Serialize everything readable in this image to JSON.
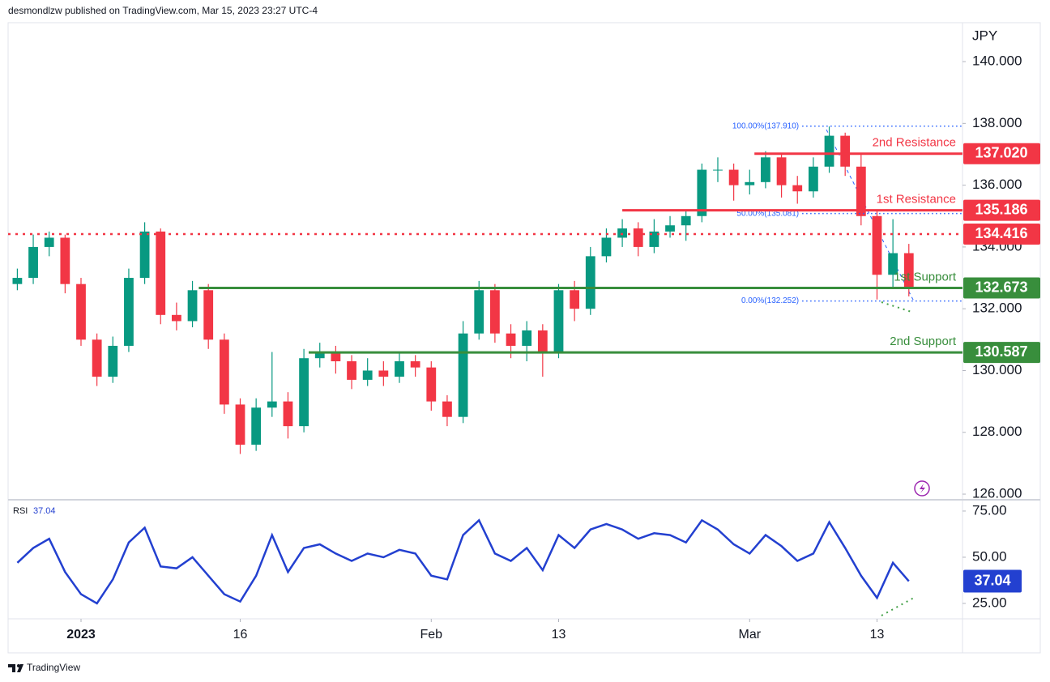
{
  "header": {
    "text": "desmondlzw published on TradingView.com, Mar 15, 2023 23:27 UTC-4"
  },
  "footer": {
    "brand": "TradingView"
  },
  "chart_data": [
    {
      "type": "candlestick",
      "unit": "JPY",
      "x": [
        -4,
        -3,
        -2,
        -1,
        0,
        1,
        2,
        3,
        4,
        5,
        6,
        7,
        8,
        9,
        10,
        11,
        12,
        13,
        14,
        15,
        16,
        17,
        18,
        19,
        20,
        21,
        22,
        23,
        24,
        25,
        26,
        27,
        28,
        29,
        30,
        31,
        32,
        33,
        34,
        35,
        36,
        37,
        38,
        39,
        40,
        41,
        42,
        43,
        44,
        45,
        46,
        47,
        48,
        49,
        50,
        51,
        52
      ],
      "open": [
        132.8,
        133.0,
        134.0,
        134.3,
        132.8,
        131.0,
        129.8,
        130.8,
        133.0,
        134.5,
        131.8,
        131.6,
        132.6,
        131.0,
        128.9,
        127.6,
        128.8,
        129.0,
        128.2,
        130.4,
        130.6,
        130.3,
        129.7,
        130.0,
        129.8,
        130.3,
        130.1,
        129.0,
        128.5,
        131.2,
        132.6,
        131.2,
        130.8,
        131.3,
        130.6,
        132.6,
        132.0,
        133.7,
        134.3,
        134.6,
        134.0,
        134.5,
        134.7,
        135.0,
        136.5,
        136.5,
        136.0,
        136.1,
        136.9,
        136.0,
        135.8,
        136.6,
        137.6,
        136.6,
        135.0,
        133.1,
        133.8
      ],
      "high": [
        133.3,
        134.4,
        134.5,
        134.4,
        133.0,
        131.2,
        131.1,
        133.3,
        134.8,
        134.6,
        132.2,
        132.9,
        132.8,
        131.2,
        129.1,
        129.1,
        130.6,
        129.3,
        130.7,
        130.9,
        130.8,
        130.5,
        130.4,
        130.3,
        130.6,
        130.5,
        130.3,
        129.2,
        131.6,
        132.9,
        132.8,
        131.5,
        131.6,
        131.5,
        132.8,
        132.9,
        134.0,
        134.6,
        134.9,
        134.8,
        134.9,
        135.0,
        135.2,
        136.7,
        136.9,
        136.7,
        136.5,
        137.1,
        137.0,
        136.3,
        136.9,
        137.9,
        137.7,
        137.0,
        135.2,
        134.9,
        134.1
      ],
      "low": [
        132.6,
        132.8,
        133.7,
        132.5,
        130.8,
        129.5,
        129.6,
        130.6,
        132.8,
        131.5,
        131.3,
        131.4,
        130.7,
        128.6,
        127.3,
        127.4,
        128.5,
        127.8,
        128.0,
        130.1,
        129.9,
        129.4,
        129.5,
        129.5,
        129.6,
        129.8,
        128.7,
        128.2,
        128.3,
        131.0,
        130.9,
        130.4,
        130.3,
        129.8,
        130.4,
        131.6,
        131.8,
        133.5,
        134.0,
        133.7,
        133.8,
        134.3,
        134.2,
        134.8,
        136.1,
        135.5,
        135.7,
        135.9,
        135.6,
        135.4,
        135.6,
        136.4,
        136.3,
        134.7,
        132.3,
        132.7,
        132.4
      ],
      "close": [
        133.0,
        134.0,
        134.3,
        132.8,
        131.0,
        129.8,
        130.8,
        133.0,
        134.5,
        131.8,
        131.6,
        132.6,
        131.0,
        128.9,
        127.6,
        128.8,
        129.0,
        128.2,
        130.4,
        130.6,
        130.3,
        129.7,
        130.0,
        129.8,
        130.3,
        130.1,
        129.0,
        128.5,
        131.2,
        132.6,
        131.2,
        130.8,
        131.3,
        130.6,
        132.6,
        132.0,
        133.7,
        134.3,
        134.6,
        134.0,
        134.5,
        134.7,
        135.0,
        136.5,
        136.5,
        136.0,
        136.1,
        136.9,
        136.0,
        135.8,
        136.6,
        137.6,
        136.6,
        135.0,
        133.1,
        133.8,
        132.7
      ],
      "up_color": "#089981",
      "down_color": "#f23645",
      "xlim": [
        -4.58,
        55.37
      ],
      "ylim": [
        125.87,
        141.26
      ],
      "yticks": [
        {
          "value": 126,
          "label": "126.000"
        },
        {
          "value": 128,
          "label": "128.000"
        },
        {
          "value": 130,
          "label": "130.000"
        },
        {
          "value": 132,
          "label": "132.000"
        },
        {
          "value": 134,
          "label": "134.000"
        },
        {
          "value": 136,
          "label": "136.000"
        },
        {
          "value": 138,
          "label": "138.000"
        },
        {
          "value": 140,
          "label": "140.000"
        }
      ],
      "levels": [
        {
          "name": "2nd Resistance",
          "value": 137.02,
          "label": "137.020",
          "color": "#f23645",
          "x_start": 42.3
        },
        {
          "name": "1st Resistance",
          "value": 135.186,
          "label": "135.186",
          "color": "#f23645",
          "x_start": 34
        },
        {
          "value": 134.416,
          "label": "134.416",
          "color": "#f23645",
          "style": "dotted"
        },
        {
          "name": "1st Support",
          "value": 132.673,
          "label": "132.673",
          "color": "#388e3c",
          "x_start": 7.4
        },
        {
          "name": "2nd Support",
          "value": 130.587,
          "label": "130.587",
          "color": "#388e3c",
          "x_start": 14.3
        }
      ],
      "fib_levels": [
        {
          "value": 137.91,
          "label": "100.00%(137.910)"
        },
        {
          "value": 135.081,
          "label": "50.00%(135.081)"
        },
        {
          "value": 132.252,
          "label": "0.00%(132.252)"
        }
      ],
      "fib_color": "#2962ff",
      "fib_x_start": 45.3
    },
    {
      "type": "line",
      "name": "RSI",
      "color": "#2340d0",
      "x": [
        -4,
        -3,
        -2,
        -1,
        0,
        1,
        2,
        3,
        4,
        5,
        6,
        7,
        8,
        9,
        10,
        11,
        12,
        13,
        14,
        15,
        16,
        17,
        18,
        19,
        20,
        21,
        22,
        23,
        24,
        25,
        26,
        27,
        28,
        29,
        30,
        31,
        32,
        33,
        34,
        35,
        36,
        37,
        38,
        39,
        40,
        41,
        42,
        43,
        44,
        45,
        46,
        47,
        48,
        49,
        50,
        51,
        52
      ],
      "values": [
        47,
        55,
        60,
        42,
        30,
        25,
        38,
        58,
        66,
        45,
        44,
        50,
        40,
        30,
        26,
        40,
        62,
        42,
        55,
        57,
        52,
        48,
        52,
        50,
        54,
        52,
        40,
        38,
        62,
        70,
        52,
        48,
        55,
        43,
        62,
        55,
        65,
        68,
        65,
        60,
        63,
        62,
        58,
        70,
        65,
        57,
        52,
        62,
        56,
        48,
        52,
        69,
        55,
        40,
        28,
        47,
        37.04
      ],
      "xlim": [
        -4.58,
        55.37
      ],
      "ylim": [
        17.1,
        79.8
      ],
      "yticks": [
        {
          "value": 25,
          "label": "25.00"
        },
        {
          "value": 50,
          "label": "50.00"
        },
        {
          "value": 75,
          "label": "75.00"
        }
      ],
      "xticks": [
        {
          "value": 0,
          "label": "2023"
        },
        {
          "value": 10,
          "label": "16"
        },
        {
          "value": 22,
          "label": "Feb"
        },
        {
          "value": 30,
          "label": "13"
        },
        {
          "value": 42,
          "label": "Mar"
        },
        {
          "value": 50,
          "label": "13"
        }
      ]
    }
  ]
}
